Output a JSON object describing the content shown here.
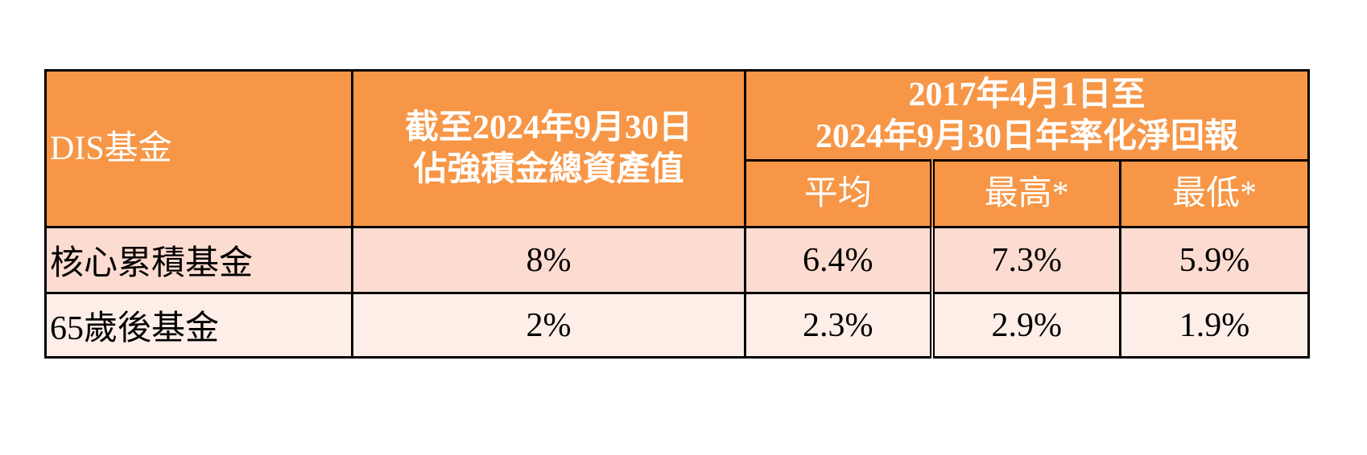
{
  "table": {
    "header": {
      "fund_col": "DIS基金",
      "asset_col_line1": "截至2024年9月30日",
      "asset_col_line2": "佔強積金總資產值",
      "return_group_line1": "2017年4月1日至",
      "return_group_line2": "2024年9月30日年率化淨回報",
      "sub_average": "平均",
      "sub_highest": "最高*",
      "sub_lowest": "最低*"
    },
    "rows": [
      {
        "fund": "核心累積基金",
        "asset_share": "8%",
        "average": "6.4%",
        "highest": "7.3%",
        "lowest": "5.9%"
      },
      {
        "fund": "65歲後基金",
        "asset_share": "2%",
        "average": "2.3%",
        "highest": "2.9%",
        "lowest": "1.9%"
      }
    ]
  },
  "colors": {
    "header_bg": "#f79646",
    "row_a_bg": "#fcdcd0",
    "row_b_bg": "#fdeee8",
    "header_text": "#ffffff"
  }
}
